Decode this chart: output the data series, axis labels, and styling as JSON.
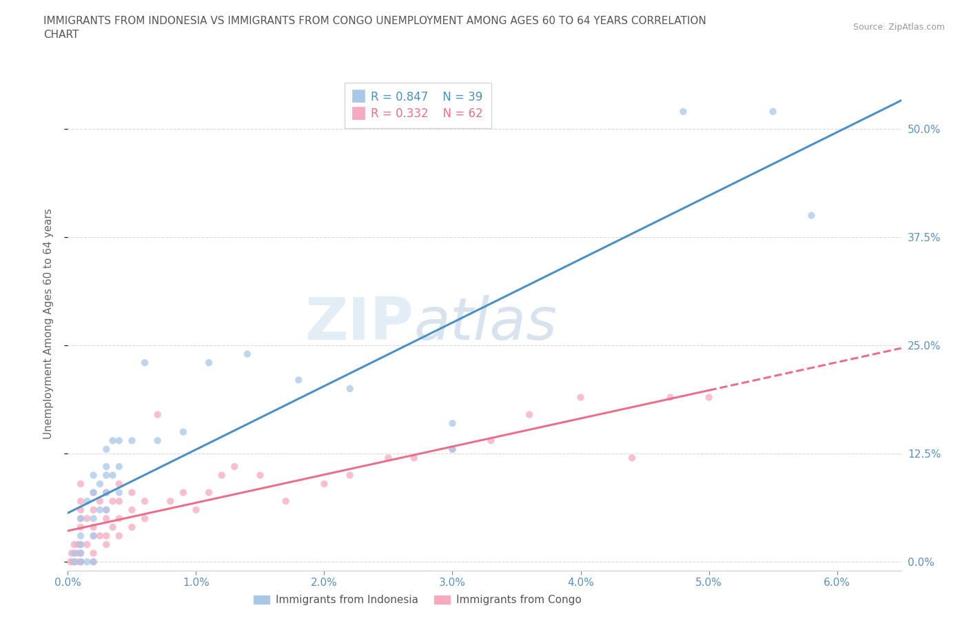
{
  "title": "IMMIGRANTS FROM INDONESIA VS IMMIGRANTS FROM CONGO UNEMPLOYMENT AMONG AGES 60 TO 64 YEARS CORRELATION\nCHART",
  "source": "Source: ZipAtlas.com",
  "ylabel": "Unemployment Among Ages 60 to 64 years",
  "xlim": [
    0.0,
    0.065
  ],
  "ylim": [
    -0.01,
    0.56
  ],
  "xticks": [
    0.0,
    0.01,
    0.02,
    0.03,
    0.04,
    0.05,
    0.06
  ],
  "xticklabels": [
    "0.0%",
    "1.0%",
    "2.0%",
    "3.0%",
    "4.0%",
    "5.0%",
    "6.0%"
  ],
  "yticks": [
    0.0,
    0.125,
    0.25,
    0.375,
    0.5
  ],
  "yticklabels": [
    "0.0%",
    "12.5%",
    "25.0%",
    "37.5%",
    "50.0%"
  ],
  "color_indonesia": "#a8c8e8",
  "color_congo": "#f5aabf",
  "line_color_indonesia": "#4a90c4",
  "line_color_congo": "#e8708a",
  "legend_r_indonesia": "R = 0.847",
  "legend_n_indonesia": "N = 39",
  "legend_r_congo": "R = 0.332",
  "legend_n_congo": "N = 62",
  "watermark_zip": "ZIP",
  "watermark_atlas": "atlas",
  "indonesia_x": [
    0.0005,
    0.0005,
    0.001,
    0.001,
    0.001,
    0.001,
    0.001,
    0.0015,
    0.0015,
    0.002,
    0.002,
    0.002,
    0.002,
    0.002,
    0.0025,
    0.0025,
    0.003,
    0.003,
    0.003,
    0.003,
    0.003,
    0.0035,
    0.0035,
    0.004,
    0.004,
    0.004,
    0.005,
    0.006,
    0.007,
    0.009,
    0.011,
    0.014,
    0.018,
    0.022,
    0.03,
    0.03,
    0.048,
    0.055,
    0.058
  ],
  "indonesia_y": [
    0.0,
    0.01,
    0.0,
    0.01,
    0.02,
    0.03,
    0.05,
    0.0,
    0.07,
    0.0,
    0.03,
    0.05,
    0.08,
    0.1,
    0.06,
    0.09,
    0.06,
    0.08,
    0.1,
    0.11,
    0.13,
    0.1,
    0.14,
    0.08,
    0.11,
    0.14,
    0.14,
    0.23,
    0.14,
    0.15,
    0.23,
    0.24,
    0.21,
    0.2,
    0.13,
    0.16,
    0.52,
    0.52,
    0.4
  ],
  "congo_x": [
    0.0002,
    0.0003,
    0.0004,
    0.0005,
    0.0006,
    0.0007,
    0.0008,
    0.001,
    0.001,
    0.001,
    0.001,
    0.001,
    0.001,
    0.001,
    0.001,
    0.001,
    0.0015,
    0.0015,
    0.002,
    0.002,
    0.002,
    0.002,
    0.002,
    0.002,
    0.0025,
    0.0025,
    0.003,
    0.003,
    0.003,
    0.003,
    0.003,
    0.0035,
    0.0035,
    0.004,
    0.004,
    0.004,
    0.004,
    0.005,
    0.005,
    0.005,
    0.006,
    0.006,
    0.007,
    0.008,
    0.009,
    0.01,
    0.011,
    0.012,
    0.013,
    0.015,
    0.017,
    0.02,
    0.022,
    0.025,
    0.027,
    0.03,
    0.033,
    0.036,
    0.04,
    0.044,
    0.047,
    0.05
  ],
  "congo_y": [
    0.0,
    0.01,
    0.0,
    0.02,
    0.0,
    0.01,
    0.02,
    0.0,
    0.0,
    0.01,
    0.02,
    0.04,
    0.05,
    0.06,
    0.07,
    0.09,
    0.02,
    0.05,
    0.0,
    0.01,
    0.03,
    0.04,
    0.06,
    0.08,
    0.03,
    0.07,
    0.02,
    0.03,
    0.05,
    0.06,
    0.08,
    0.04,
    0.07,
    0.03,
    0.05,
    0.07,
    0.09,
    0.04,
    0.06,
    0.08,
    0.05,
    0.07,
    0.17,
    0.07,
    0.08,
    0.06,
    0.08,
    0.1,
    0.11,
    0.1,
    0.07,
    0.09,
    0.1,
    0.12,
    0.12,
    0.13,
    0.14,
    0.17,
    0.19,
    0.12,
    0.19,
    0.19
  ],
  "background_color": "#ffffff",
  "grid_color": "#d8d8d8",
  "tick_color": "#5a90c0"
}
